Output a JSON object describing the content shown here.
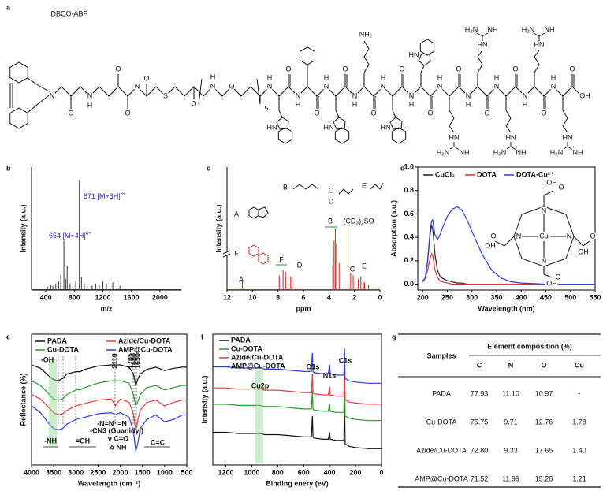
{
  "letters": [
    "a",
    "b",
    "c",
    "d",
    "e",
    "f",
    "g"
  ],
  "a": {
    "label": "DBCO-ABP",
    "linker": [
      "N",
      "O",
      "H",
      "N",
      "O",
      "N",
      "O",
      "O",
      "S",
      "O",
      "H",
      "N",
      "O",
      "5"
    ],
    "residues": [
      {
        "n": "N",
        "h": "H",
        "o": "O",
        "side": [
          "HN"
        ]
      },
      {
        "n": "N",
        "h": "H",
        "o": "O",
        "side": []
      },
      {
        "n": "N",
        "h": "H",
        "o": "O",
        "side": [
          "HN"
        ]
      },
      {
        "n": "N",
        "h": "H",
        "o": "O",
        "side": [
          "NH₂"
        ]
      },
      {
        "n": "N",
        "h": "H",
        "o": "O",
        "side": [
          "HN"
        ]
      },
      {
        "n": "N",
        "h": "H",
        "o": "O",
        "side": [
          "HN"
        ]
      },
      {
        "n": "N",
        "h": "H",
        "o": "O",
        "side": [
          "HN",
          "H₂N",
          "NH"
        ]
      },
      {
        "n": "N",
        "h": "H",
        "o": "O",
        "side": [
          "HN",
          "H₂N",
          "NH"
        ]
      },
      {
        "n": "N",
        "h": "H",
        "o": "O",
        "side": [
          "HN",
          "H₂N",
          "NH"
        ]
      },
      {
        "n": "N",
        "h": "H",
        "o": "O",
        "side": [
          "HN",
          "H₂N",
          "NH"
        ]
      },
      {
        "n": "N",
        "h": "H",
        "o": "O",
        "side": [
          "HN",
          "H₂N",
          "NH"
        ]
      }
    ],
    "terminal": "OH"
  },
  "b": {
    "type": "stick",
    "color": "#333333",
    "xlabel": "m/z",
    "ylabel": "Intensity (a.u.)",
    "xlim": [
      200,
      2300
    ],
    "ylim": [
      0,
      112
    ],
    "xticks": [
      400,
      800,
      1200,
      1600,
      2000
    ],
    "x": [
      430,
      470,
      500,
      540,
      580,
      610,
      654,
      680,
      700,
      740,
      780,
      820,
      871,
      900,
      940,
      980,
      1050,
      1100,
      1150,
      1200,
      1250,
      1300,
      1340,
      1400,
      1440
    ],
    "values": [
      3,
      5,
      4,
      6,
      8,
      14,
      45,
      10,
      22,
      6,
      5,
      8,
      100,
      12,
      6,
      5,
      4,
      6,
      5,
      8,
      6,
      10,
      7,
      9,
      4
    ],
    "annotations": [
      {
        "text": "871 [M+3H]",
        "sup": "3+"
      },
      {
        "text": "654 [M+4H]",
        "sup": "4+"
      }
    ],
    "annotation_color": "#2a2ab0"
  },
  "c": {
    "type": "stick",
    "color": "#d42020",
    "xlabel": "ppm",
    "ylabel": "Intensity (a.u.)",
    "xlim": [
      12,
      0
    ],
    "ylim": [
      0,
      100
    ],
    "xticks": [
      12,
      10,
      8,
      6,
      4,
      2,
      0
    ],
    "x": [
      10.8,
      7.9,
      7.6,
      7.4,
      7.2,
      7.0,
      6.9,
      3.7,
      3.6,
      3.5,
      3.4,
      3.2,
      2.5,
      2.3,
      2.1,
      1.7,
      1.5,
      1.3,
      1.2,
      0.9
    ],
    "values": [
      7,
      12,
      16,
      15,
      13,
      11,
      9,
      20,
      40,
      50,
      38,
      22,
      52,
      14,
      12,
      9,
      11,
      7,
      6,
      4
    ],
    "annotations": [
      "A",
      "F",
      "D",
      "B",
      "(CD₃)₂SO",
      "C",
      "E"
    ],
    "inset_labels": [
      "A",
      "B",
      "C",
      "D",
      "E",
      "F"
    ]
  },
  "d": {
    "type": "line",
    "xlabel": "Wavelength (nm)",
    "ylabel": "Absorption (a.u.)",
    "xlim": [
      190,
      550
    ],
    "ylim": [
      -0.05,
      1.0
    ],
    "xticks": [
      200,
      250,
      300,
      350,
      400,
      450,
      500,
      550
    ],
    "yticks": [
      {
        "value": 0,
        "label": "0.0"
      },
      0.2,
      0.4,
      0.6,
      0.8,
      {
        "value": 1,
        "label": "1.0"
      }
    ],
    "x": [
      200,
      205,
      210,
      215,
      218,
      220,
      222,
      225,
      230,
      235,
      240,
      250,
      260,
      270,
      280,
      290,
      300,
      320,
      340,
      360,
      380,
      400,
      450,
      500,
      550
    ],
    "series": [
      {
        "name": "CuCl₂",
        "color": "#222222",
        "values": [
          0.02,
          0.05,
          0.2,
          0.42,
          0.5,
          0.48,
          0.4,
          0.25,
          0.12,
          0.07,
          0.05,
          0.03,
          0.02,
          0.01,
          0.01,
          0,
          0,
          0,
          0,
          0,
          0,
          0,
          0,
          0,
          0
        ]
      },
      {
        "name": "DOTA",
        "color": "#e03030",
        "values": [
          0.03,
          0.05,
          0.12,
          0.22,
          0.26,
          0.25,
          0.2,
          0.12,
          0.06,
          0.03,
          0.02,
          0.01,
          0,
          0,
          0,
          0,
          0,
          0,
          0,
          0,
          0,
          0,
          0,
          0,
          0
        ]
      },
      {
        "name": "DOTA-Cu²⁺",
        "color": "#2b3bd6",
        "values": [
          0.02,
          0.05,
          0.2,
          0.45,
          0.54,
          0.55,
          0.5,
          0.42,
          0.38,
          0.42,
          0.48,
          0.58,
          0.64,
          0.66,
          0.63,
          0.55,
          0.45,
          0.26,
          0.12,
          0.05,
          0.02,
          0.01,
          0,
          0,
          0
        ]
      }
    ],
    "inset_labels": [
      "N",
      "N",
      "N",
      "N",
      "Cu",
      "O",
      "OH",
      "O",
      "OH",
      "O",
      "OH",
      "O",
      "OH"
    ]
  },
  "e": {
    "type": "line",
    "xlabel": "Wavelength (cm⁻¹)",
    "ylabel": "Reflectance (%)",
    "xlim": [
      4000,
      500
    ],
    "ylim": [
      0,
      115
    ],
    "xticks": [
      4000,
      3500,
      3000,
      2500,
      2000,
      1500,
      1000,
      500
    ],
    "x": [
      4000,
      3800,
      3600,
      3500,
      3400,
      3300,
      3200,
      3000,
      2900,
      2800,
      2500,
      2200,
      2110,
      2000,
      1800,
      1705,
      1650,
      1600,
      1550,
      1400,
      1200,
      1000,
      800,
      600,
      500
    ],
    "series": [
      {
        "name": "PADA",
        "color": "#111111",
        "values": [
          88,
          85,
          78,
          75,
          74,
          76,
          80,
          82,
          82,
          84,
          87,
          88,
          88,
          88,
          86,
          80,
          70,
          76,
          80,
          84,
          86,
          83,
          85,
          86,
          86
        ]
      },
      {
        "name": "Cu-DOTA",
        "color": "#2a9a2a",
        "values": [
          74,
          70,
          62,
          58,
          57,
          58,
          62,
          66,
          66,
          68,
          72,
          74,
          74,
          74,
          72,
          62,
          52,
          56,
          62,
          68,
          70,
          66,
          68,
          70,
          70
        ]
      },
      {
        "name": "Azide/Cu-DOTA",
        "color": "#e03c3c",
        "values": [
          62,
          58,
          50,
          46,
          44,
          45,
          48,
          52,
          53,
          54,
          57,
          58,
          52,
          58,
          55,
          45,
          30,
          40,
          48,
          55,
          57,
          52,
          55,
          57,
          57
        ]
      },
      {
        "name": "AMP@Cu-DOTA",
        "color": "#2b3bd6",
        "values": [
          52,
          46,
          36,
          32,
          31,
          32,
          36,
          40,
          41,
          42,
          45,
          46,
          44,
          46,
          42,
          30,
          12,
          20,
          32,
          40,
          44,
          38,
          40,
          44,
          44
        ]
      }
    ],
    "annotations": [
      "-OH",
      "-NH",
      "=CH",
      "2110",
      "1705",
      "1680",
      "1650",
      "-N=N⁺=N",
      "-CN3 (Guanidyl)",
      "ν C=O",
      "δ NH",
      "C=C"
    ]
  },
  "f": {
    "type": "line",
    "xlabel": "Binding enery (eV)",
    "ylabel": "Intensity (a.u.)",
    "xlim": [
      1300,
      0
    ],
    "ylim": [
      0,
      112
    ],
    "xticks": [
      1200,
      1000,
      800,
      600,
      400,
      200,
      0
    ],
    "x": [
      1300,
      1200,
      1100,
      1000,
      960,
      940,
      930,
      900,
      800,
      700,
      600,
      540,
      533,
      528,
      520,
      450,
      410,
      400,
      395,
      350,
      300,
      290,
      285,
      280,
      250,
      200,
      100,
      0
    ],
    "series": [
      {
        "name": "PADA",
        "color": "#111111",
        "values": [
          28,
          28,
          27,
          27,
          27,
          27,
          27,
          26,
          26,
          25,
          24,
          24,
          42,
          24,
          23,
          22,
          22,
          28,
          22,
          21,
          21,
          21,
          60,
          18,
          16,
          15,
          14,
          14
        ]
      },
      {
        "name": "Cu-DOTA",
        "color": "#2a9a2a",
        "values": [
          52,
          52,
          51,
          51,
          51,
          51,
          51,
          50,
          50,
          49,
          48,
          48,
          64,
          48,
          47,
          46,
          46,
          52,
          46,
          45,
          45,
          45,
          80,
          42,
          40,
          39,
          38,
          38
        ]
      },
      {
        "name": "Azide/Cu-DOTA",
        "color": "#e03c3c",
        "values": [
          66,
          66,
          65,
          65,
          65,
          65,
          65,
          64,
          64,
          63,
          62,
          62,
          78,
          62,
          61,
          60,
          60,
          67,
          60,
          59,
          59,
          59,
          90,
          56,
          54,
          53,
          52,
          52
        ]
      },
      {
        "name": "AMP@Cu-DOTA",
        "color": "#2b3bd6",
        "values": [
          84,
          84,
          83,
          83,
          83,
          83,
          83,
          82,
          82,
          81,
          80,
          80,
          96,
          80,
          79,
          78,
          78,
          86,
          78,
          77,
          77,
          77,
          100,
          74,
          72,
          71,
          70,
          70
        ]
      }
    ],
    "annotations": [
      "Cu2p",
      "O1s",
      "N1s",
      "C1s"
    ]
  },
  "g": {
    "header": [
      "Samples",
      "Element composition (%)"
    ],
    "columns": [
      "C",
      "N",
      "O",
      "Cu"
    ],
    "rows": [
      [
        "PADA",
        "77.93",
        "11.10",
        "10.97",
        "-"
      ],
      [
        "Cu-DOTA",
        "75.75",
        "9.71",
        "12.76",
        "1.78"
      ],
      [
        "Azide/Cu-DOTA",
        "72.80",
        "9.33",
        "17.65",
        "1.40"
      ],
      [
        "AMP@Cu-DOTA",
        "71.52",
        "11.99",
        "15.28",
        "1.21"
      ]
    ]
  }
}
